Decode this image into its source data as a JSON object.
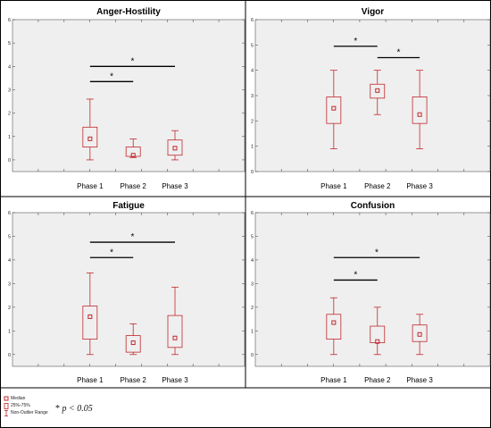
{
  "chart_data": [
    {
      "type": "boxplot",
      "title": "Anger-Hostility",
      "categories": [
        "Phase 1",
        "Phase 2",
        "Phase 3"
      ],
      "ylim": [
        -0.5,
        6
      ],
      "yticks": [
        "0",
        "1",
        "2",
        "3",
        "4",
        "5",
        "6"
      ],
      "grid": false,
      "boxes": [
        {
          "label": "Phase 1",
          "whisker_low": 0.0,
          "q1": 0.55,
          "median": 0.9,
          "q3": 1.4,
          "whisker_high": 2.6
        },
        {
          "label": "Phase 2",
          "whisker_low": 0.1,
          "q1": 0.15,
          "median": 0.2,
          "q3": 0.55,
          "whisker_high": 0.9
        },
        {
          "label": "Phase 3",
          "whisker_low": 0.0,
          "q1": 0.2,
          "median": 0.5,
          "q3": 0.85,
          "whisker_high": 1.25
        }
      ],
      "significance": [
        {
          "from": "Phase 1",
          "to": "Phase 2",
          "y": 3.35,
          "label": "*"
        },
        {
          "from": "Phase 1",
          "to": "Phase 3",
          "y": 4.0,
          "label": "*"
        }
      ]
    },
    {
      "type": "boxplot",
      "title": "Vigor",
      "categories": [
        "Phase 1",
        "Phase 2",
        "Phase 3"
      ],
      "ylim": [
        0,
        6
      ],
      "yticks": [
        "0",
        "1",
        "2",
        "3",
        "4",
        "5",
        "6"
      ],
      "grid": false,
      "boxes": [
        {
          "label": "Phase 1",
          "whisker_low": 0.9,
          "q1": 1.9,
          "median": 2.5,
          "q3": 2.95,
          "whisker_high": 4.0
        },
        {
          "label": "Phase 2",
          "whisker_low": 2.25,
          "q1": 2.9,
          "median": 3.2,
          "q3": 3.45,
          "whisker_high": 4.0
        },
        {
          "label": "Phase 3",
          "whisker_low": 0.9,
          "q1": 1.9,
          "median": 2.25,
          "q3": 2.95,
          "whisker_high": 4.0
        }
      ],
      "significance": [
        {
          "from": "Phase 1",
          "to": "Phase 2",
          "y": 4.95,
          "label": "*"
        },
        {
          "from": "Phase 2",
          "to": "Phase 3",
          "y": 4.5,
          "label": "*"
        }
      ]
    },
    {
      "type": "boxplot",
      "title": "Fatigue",
      "categories": [
        "Phase 1",
        "Phase 2",
        "Phase 3"
      ],
      "ylim": [
        -0.5,
        6
      ],
      "yticks": [
        "0",
        "1",
        "2",
        "3",
        "4",
        "5",
        "6"
      ],
      "grid": false,
      "boxes": [
        {
          "label": "Phase 1",
          "whisker_low": 0.0,
          "q1": 0.65,
          "median": 1.6,
          "q3": 2.05,
          "whisker_high": 3.45
        },
        {
          "label": "Phase 2",
          "whisker_low": 0.0,
          "q1": 0.1,
          "median": 0.5,
          "q3": 0.8,
          "whisker_high": 1.3
        },
        {
          "label": "Phase 3",
          "whisker_low": 0.0,
          "q1": 0.3,
          "median": 0.7,
          "q3": 1.65,
          "whisker_high": 2.85
        }
      ],
      "significance": [
        {
          "from": "Phase 1",
          "to": "Phase 2",
          "y": 4.1,
          "label": "*"
        },
        {
          "from": "Phase 1",
          "to": "Phase 3",
          "y": 4.75,
          "label": "*"
        }
      ]
    },
    {
      "type": "boxplot",
      "title": "Confusion",
      "categories": [
        "Phase 1",
        "Phase 2",
        "Phase 3"
      ],
      "ylim": [
        -0.5,
        6
      ],
      "yticks": [
        "0",
        "1",
        "2",
        "3",
        "4",
        "5",
        "6"
      ],
      "grid": false,
      "boxes": [
        {
          "label": "Phase 1",
          "whisker_low": 0.0,
          "q1": 0.65,
          "median": 1.35,
          "q3": 1.7,
          "whisker_high": 2.4
        },
        {
          "label": "Phase 2",
          "whisker_low": 0.0,
          "q1": 0.5,
          "median": 0.55,
          "q3": 1.2,
          "whisker_high": 2.0
        },
        {
          "label": "Phase 3",
          "whisker_low": 0.0,
          "q1": 0.55,
          "median": 0.85,
          "q3": 1.25,
          "whisker_high": 1.7
        }
      ],
      "significance": [
        {
          "from": "Phase 1",
          "to": "Phase 2",
          "y": 3.15,
          "label": "*"
        },
        {
          "from": "Phase 1",
          "to": "Phase 3",
          "y": 4.1,
          "label": "*"
        }
      ]
    }
  ],
  "legend": {
    "median": "Median",
    "box": "25%-75%",
    "whisker": "Non-Outlier Range"
  },
  "significance_note": {
    "symbol": "*",
    "text": "p < 0.05"
  },
  "colors": {
    "box": "#c0282d",
    "plot_bg": "#efefef",
    "frame": "#000000"
  }
}
